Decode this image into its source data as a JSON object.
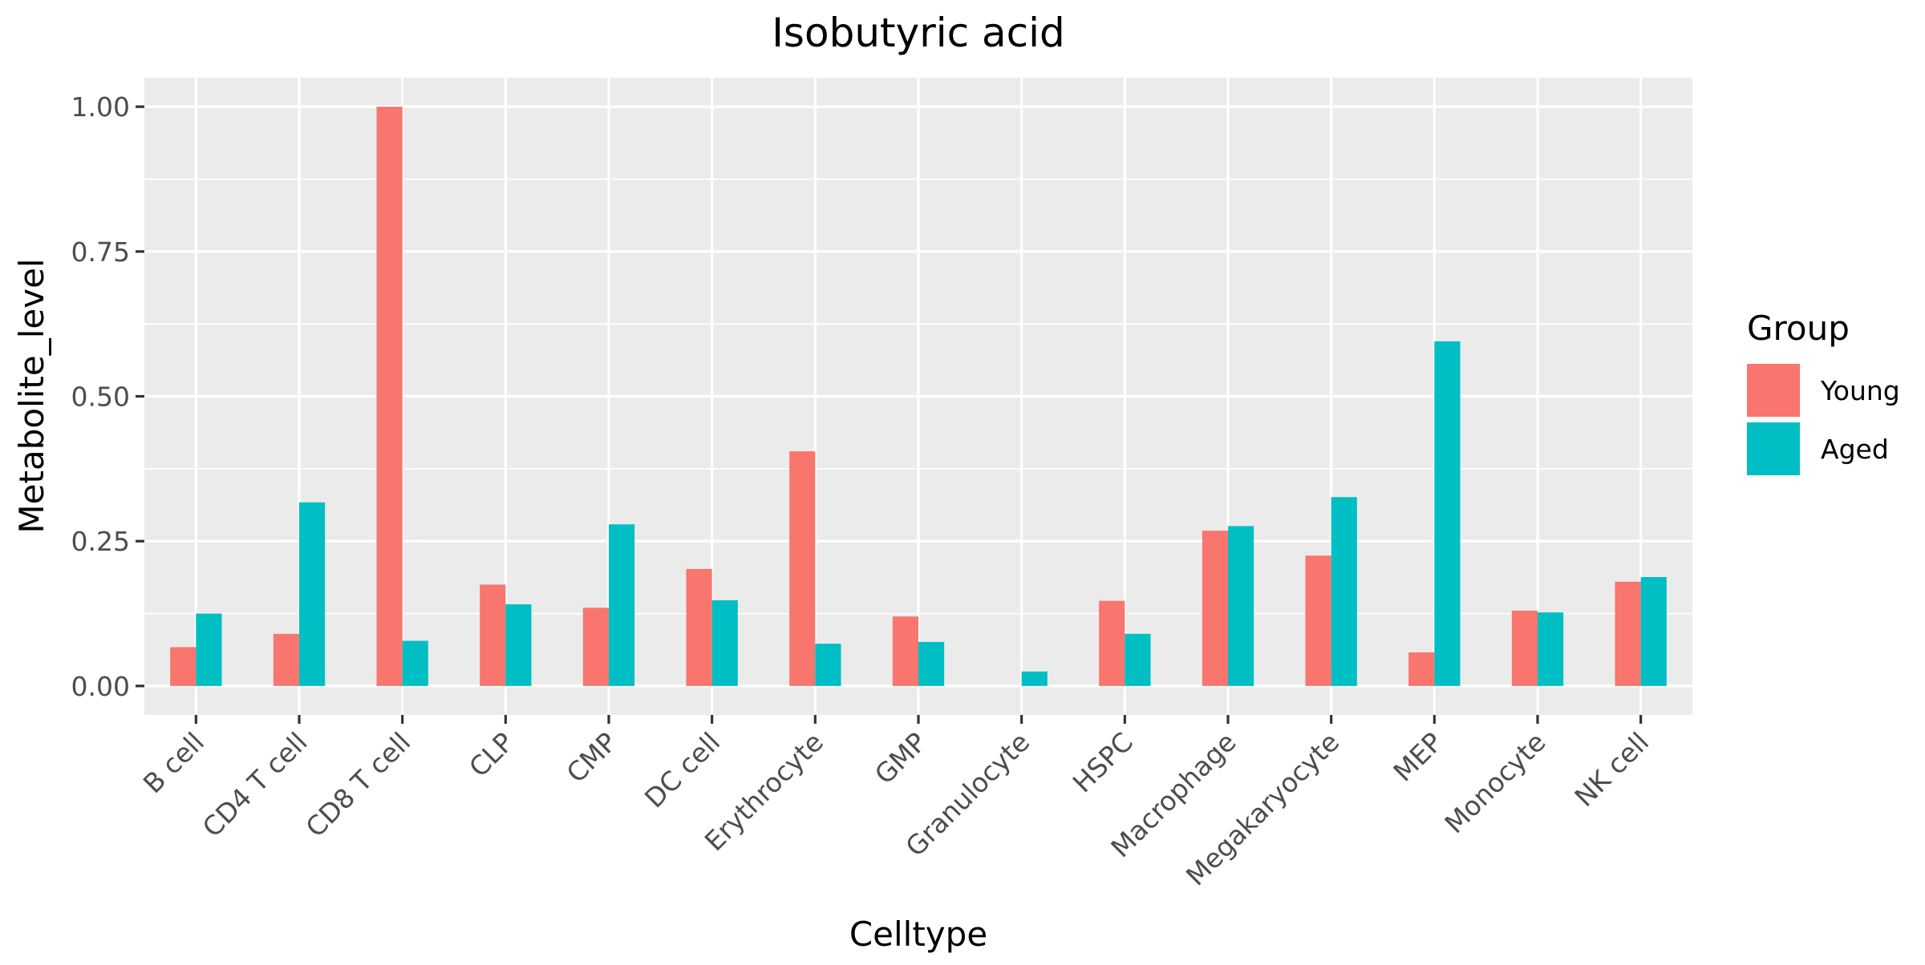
{
  "chart_data": {
    "type": "bar",
    "title": "Isobutyric acid",
    "xlabel": "Celltype",
    "ylabel": "Metabolite_level",
    "ylim": [
      -0.05,
      1.05
    ],
    "yticks": [
      0.0,
      0.25,
      0.5,
      0.75,
      1.0
    ],
    "ytick_labels": [
      "0.00",
      "0.25",
      "0.50",
      "0.75",
      "1.00"
    ],
    "categories": [
      "B cell",
      "CD4 T cell",
      "CD8 T cell",
      "CLP",
      "CMP",
      "DC cell",
      "Erythrocyte",
      "GMP",
      "Granulocyte",
      "HSPC",
      "Macrophage",
      "Megakaryocyte",
      "MEP",
      "Monocyte",
      "NK cell"
    ],
    "series": [
      {
        "name": "Young",
        "color": "#F8766D",
        "values": [
          0.067,
          0.09,
          1.0,
          0.175,
          0.135,
          0.202,
          0.405,
          0.12,
          null,
          0.147,
          0.268,
          0.225,
          0.058,
          0.13,
          0.18
        ]
      },
      {
        "name": "Aged",
        "color": "#00BFC4",
        "values": [
          0.125,
          0.317,
          0.078,
          0.141,
          0.279,
          0.148,
          0.073,
          0.076,
          0.025,
          0.09,
          0.276,
          0.326,
          0.595,
          0.127,
          0.188
        ]
      }
    ],
    "legend": {
      "title": "Group",
      "position": "right"
    },
    "grid": true,
    "panel_background": "#EBEBEB",
    "grid_color": "#FFFFFF"
  }
}
